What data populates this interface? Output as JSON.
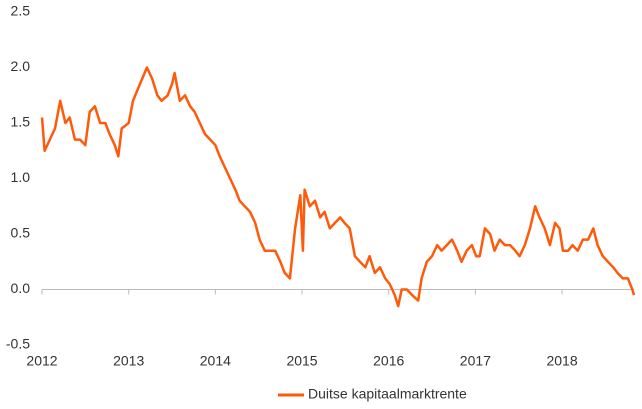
{
  "chart_data": {
    "type": "line",
    "x": [
      2012.0,
      2012.03,
      2012.09,
      2012.15,
      2012.21,
      2012.27,
      2012.32,
      2012.38,
      2012.44,
      2012.5,
      2012.55,
      2012.61,
      2012.67,
      2012.73,
      2012.78,
      2012.84,
      2012.88,
      2012.92,
      2013.0,
      2013.05,
      2013.13,
      2013.21,
      2013.27,
      2013.33,
      2013.38,
      2013.45,
      2013.5,
      2013.53,
      2013.59,
      2013.65,
      2013.71,
      2013.76,
      2013.82,
      2013.88,
      2013.94,
      2014.0,
      2014.05,
      2014.11,
      2014.17,
      2014.23,
      2014.28,
      2014.34,
      2014.4,
      2014.46,
      2014.51,
      2014.57,
      2014.63,
      2014.69,
      2014.75,
      2014.8,
      2014.86,
      2014.92,
      2014.98,
      2015.01,
      2015.03,
      2015.09,
      2015.15,
      2015.21,
      2015.26,
      2015.32,
      2015.38,
      2015.44,
      2015.49,
      2015.55,
      2015.61,
      2015.67,
      2015.73,
      2015.78,
      2015.84,
      2015.9,
      2015.96,
      2016.01,
      2016.07,
      2016.11,
      2016.15,
      2016.21,
      2016.27,
      2016.34,
      2016.38,
      2016.44,
      2016.5,
      2016.56,
      2016.61,
      2016.67,
      2016.73,
      2016.79,
      2016.84,
      2016.9,
      2016.96,
      2017.01,
      2017.05,
      2017.11,
      2017.17,
      2017.22,
      2017.28,
      2017.34,
      2017.4,
      2017.46,
      2017.51,
      2017.57,
      2017.63,
      2017.69,
      2017.74,
      2017.8,
      2017.86,
      2017.92,
      2017.97,
      2018.01,
      2018.07,
      2018.12,
      2018.18,
      2018.24,
      2018.3,
      2018.36,
      2018.41,
      2018.47,
      2018.53,
      2018.59,
      2018.64,
      2018.7,
      2018.76,
      2018.81,
      2018.83
    ],
    "series": [
      {
        "name": "Duitse kapitaalmarktrente",
        "color": "#ff5a0a",
        "values": [
          1.55,
          1.25,
          1.35,
          1.45,
          1.7,
          1.5,
          1.55,
          1.35,
          1.35,
          1.3,
          1.6,
          1.65,
          1.5,
          1.5,
          1.4,
          1.3,
          1.2,
          1.45,
          1.5,
          1.7,
          1.85,
          2.0,
          1.9,
          1.75,
          1.7,
          1.75,
          1.85,
          1.95,
          1.7,
          1.75,
          1.65,
          1.6,
          1.5,
          1.4,
          1.35,
          1.3,
          1.2,
          1.1,
          1.0,
          0.9,
          0.8,
          0.75,
          0.7,
          0.6,
          0.45,
          0.35,
          0.35,
          0.35,
          0.25,
          0.15,
          0.1,
          0.55,
          0.85,
          0.35,
          0.9,
          0.75,
          0.8,
          0.65,
          0.7,
          0.55,
          0.6,
          0.65,
          0.6,
          0.55,
          0.3,
          0.25,
          0.2,
          0.3,
          0.15,
          0.2,
          0.1,
          0.05,
          -0.05,
          -0.15,
          0.0,
          0.0,
          -0.05,
          -0.1,
          0.1,
          0.25,
          0.3,
          0.4,
          0.35,
          0.4,
          0.45,
          0.35,
          0.25,
          0.35,
          0.4,
          0.3,
          0.3,
          0.55,
          0.5,
          0.35,
          0.45,
          0.4,
          0.4,
          0.35,
          0.3,
          0.4,
          0.55,
          0.75,
          0.65,
          0.55,
          0.4,
          0.6,
          0.55,
          0.35,
          0.35,
          0.4,
          0.35,
          0.45,
          0.45,
          0.55,
          0.4,
          0.3,
          0.25,
          0.2,
          0.15,
          0.1,
          0.1,
          0.0,
          -0.05
        ]
      }
    ],
    "xlim": [
      2012,
      2018.83
    ],
    "xticks": [
      2012,
      2013,
      2014,
      2015,
      2016,
      2017,
      2018
    ],
    "ylim": [
      -0.5,
      2.5
    ],
    "yticks": [
      2.5,
      {
        "value": 2,
        "label": "2.0"
      },
      1.5,
      {
        "value": 1,
        "label": "1.0"
      },
      0.5,
      {
        "value": 0,
        "label": "0.0"
      },
      -0.5
    ],
    "legend": "bottom"
  }
}
